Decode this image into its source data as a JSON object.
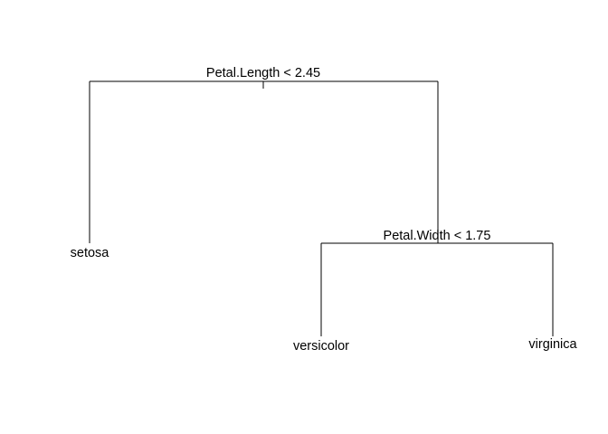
{
  "tree": {
    "root": {
      "split": "Petal.Length < 2.45",
      "left": {
        "leaf": "setosa"
      },
      "right": {
        "split": "Petal.Width < 1.75",
        "left": {
          "leaf": "versicolor"
        },
        "right": {
          "leaf": "virginica"
        }
      }
    }
  }
}
